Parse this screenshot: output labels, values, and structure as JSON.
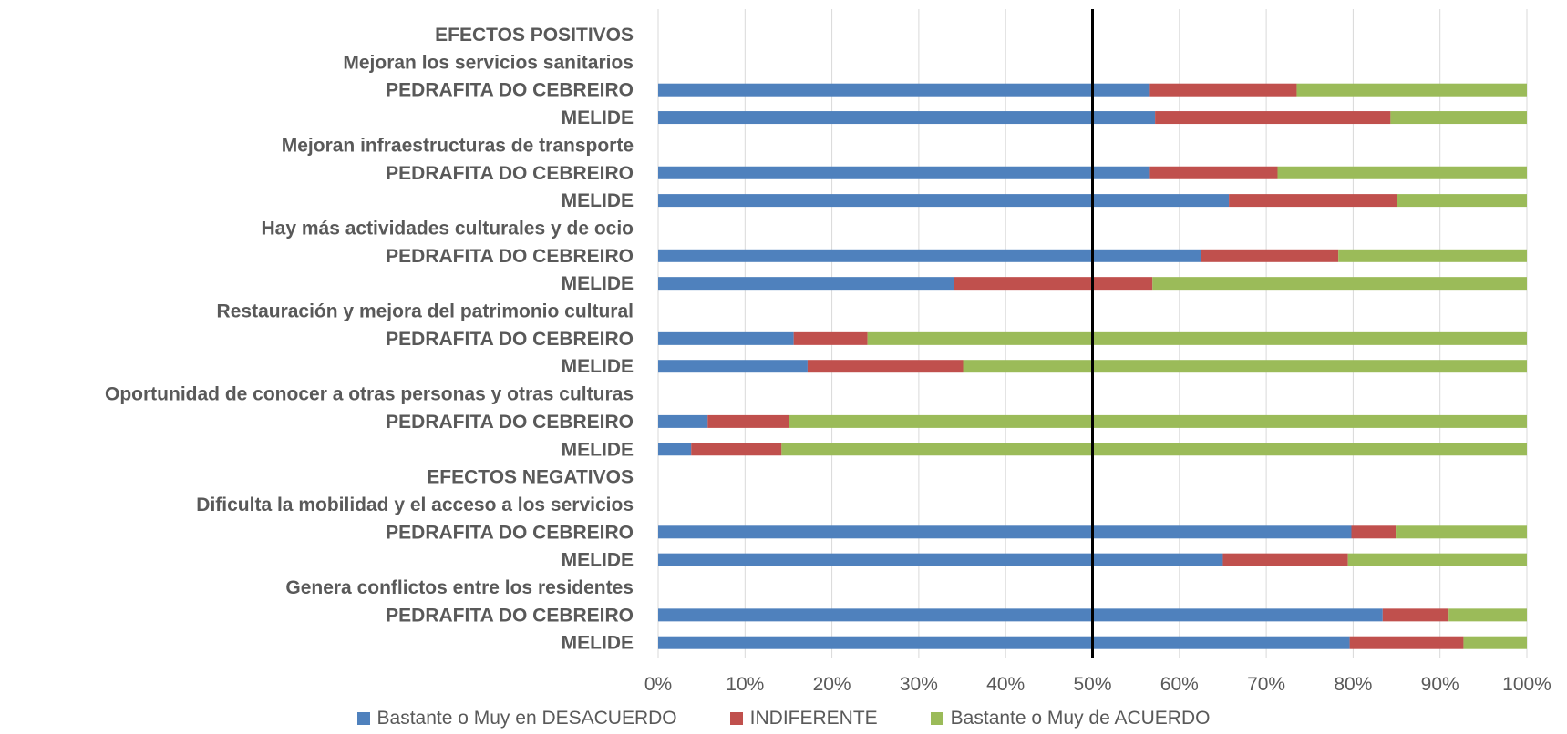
{
  "chart_data": {
    "type": "bar",
    "orientation": "horizontal",
    "stacked": "percent",
    "categories": [
      "EFECTOS POSITIVOS",
      "Mejoran los servicios sanitarios",
      "PEDRAFITA DO CEBREIRO",
      "MELIDE",
      "Mejoran infraestructuras de transporte",
      "PEDRAFITA DO CEBREIRO",
      "MELIDE",
      "Hay más actividades culturales y de ocio",
      "PEDRAFITA DO CEBREIRO",
      "MELIDE",
      "Restauración y mejora del patrimonio cultural",
      "PEDRAFITA DO CEBREIRO",
      "MELIDE",
      "Oportunidad de conocer a otras personas y otras culturas",
      "PEDRAFITA DO CEBREIRO",
      "MELIDE",
      "EFECTOS NEGATIVOS",
      "Dificulta la mobilidad y el acceso a los servicios",
      "PEDRAFITA DO CEBREIRO",
      "MELIDE",
      "Genera conflictos entre los residentes",
      "PEDRAFITA DO CEBREIRO",
      "MELIDE"
    ],
    "series": [
      {
        "name": "Bastante o Muy en DESACUERDO",
        "color": "#4F81BD",
        "values": [
          null,
          null,
          56.6,
          57.2,
          null,
          56.6,
          65.7,
          null,
          62.5,
          34.0,
          null,
          15.6,
          17.2,
          null,
          5.7,
          3.8,
          null,
          null,
          79.8,
          65.0,
          null,
          83.4,
          79.6
        ]
      },
      {
        "name": "INDIFERENTE",
        "color": "#C0504D",
        "values": [
          null,
          null,
          16.9,
          27.1,
          null,
          14.7,
          19.4,
          null,
          15.8,
          22.9,
          null,
          8.5,
          17.9,
          null,
          9.4,
          10.4,
          null,
          null,
          5.1,
          14.4,
          null,
          7.6,
          13.1
        ]
      },
      {
        "name": "Bastante o Muy de ACUERDO",
        "color": "#9BBB59",
        "values": [
          null,
          null,
          26.5,
          15.7,
          null,
          28.7,
          14.9,
          null,
          21.7,
          43.1,
          null,
          75.9,
          64.9,
          null,
          84.9,
          85.8,
          null,
          null,
          15.1,
          20.6,
          null,
          9.0,
          7.3
        ]
      }
    ],
    "x_ticks": [
      "0%",
      "10%",
      "20%",
      "30%",
      "40%",
      "50%",
      "60%",
      "70%",
      "80%",
      "90%",
      "100%"
    ],
    "xlim": [
      0,
      100
    ],
    "reference_line": 50,
    "grid": true,
    "legend_position": "bottom"
  }
}
